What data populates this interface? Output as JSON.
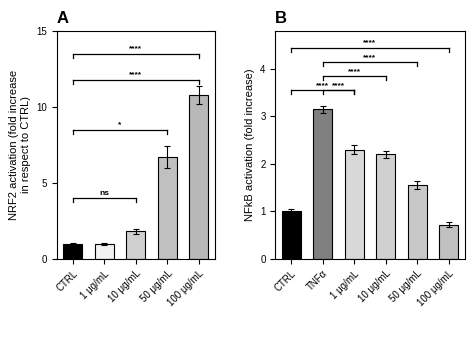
{
  "chart_data": [
    {
      "type": "bar",
      "title": "A",
      "categories": [
        "CTRL",
        "1 μg/mL",
        "10 μg/mL",
        "50 μg/mL",
        "100 μg/mL"
      ],
      "values": [
        1.0,
        1.0,
        1.8,
        6.7,
        10.8
      ],
      "errors": [
        0.05,
        0.07,
        0.15,
        0.7,
        0.6
      ],
      "colors": [
        "#000000",
        "#f2f2f2",
        "#d0d0d0",
        "#c0c0c0",
        "#b8b8b8"
      ],
      "ylabel": "NRF2 activation (fold increase\nin respect to CTRL)",
      "ylim": [
        0,
        15
      ],
      "yticks": [
        0,
        5,
        10,
        15
      ],
      "significance": [
        {
          "x1": "CTRL",
          "x2": "10 μg/mL",
          "y": 4.0,
          "label": "ns"
        },
        {
          "x1": "CTRL",
          "x2": "50 μg/mL",
          "y": 8.5,
          "label": "*"
        },
        {
          "x1": "CTRL",
          "x2": "100 μg/mL",
          "y": 11.8,
          "label": "****"
        },
        {
          "x1": "CTRL",
          "x2": "100 μg/mL",
          "y": 13.5,
          "label": "****"
        }
      ]
    },
    {
      "type": "bar",
      "title": "B",
      "categories": [
        "CTRL",
        "TNFα",
        "1 μg/mL",
        "10 μg/mL",
        "50 μg/mL",
        "100 μg/mL"
      ],
      "values": [
        1.0,
        3.15,
        2.3,
        2.2,
        1.55,
        0.72
      ],
      "errors": [
        0.04,
        0.07,
        0.1,
        0.08,
        0.08,
        0.06
      ],
      "colors": [
        "#000000",
        "#808080",
        "#d8d8d8",
        "#d0d0d0",
        "#c8c8c8",
        "#c0c0c0"
      ],
      "ylabel": "NFkB activation (fold increase)",
      "ylim": [
        0,
        4.8
      ],
      "yticks": [
        0,
        1,
        2,
        3,
        4
      ],
      "significance": [
        {
          "x1": "TNFα",
          "x2": "1 μg/mL",
          "y": 3.55,
          "label": "****"
        },
        {
          "x1": "TNFα",
          "x2": "10 μg/mL",
          "y": 3.85,
          "label": "****"
        },
        {
          "x1": "TNFα",
          "x2": "50 μg/mL",
          "y": 4.15,
          "label": "****"
        },
        {
          "x1": "CTRL",
          "x2": "1 μg/mL",
          "y": 3.55,
          "label": "****"
        },
        {
          "x1": "CTRL",
          "x2": "100 μg/mL",
          "y": 4.45,
          "label": "****"
        }
      ]
    }
  ]
}
